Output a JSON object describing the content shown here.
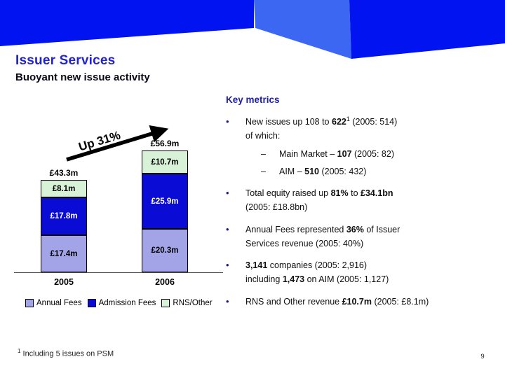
{
  "slide": {
    "title": "Issuer Services",
    "subtitle": "Buoyant new issue activity",
    "page_number": "9",
    "footnote": {
      "sup": "1",
      "text": " Including 5 issues on PSM"
    },
    "colors": {
      "header_dark": "#0013f0",
      "header_light": "#3c67f2",
      "title": "#2323cd",
      "subtitle": "#0b0b1a",
      "heading": "#1e1ea6"
    }
  },
  "key_metrics": {
    "heading": "Key metrics",
    "bullets": [
      {
        "level": 1,
        "lines": [
          [
            {
              "t": "New issues up 108 to "
            },
            {
              "t": "622",
              "b": true
            },
            {
              "t": "1",
              "sup": true
            },
            {
              "t": " (2005: 514)"
            }
          ],
          [
            {
              "t": "of which:"
            }
          ]
        ]
      },
      {
        "level": 2,
        "lines": [
          [
            {
              "t": "Main Market – "
            },
            {
              "t": "107",
              "b": true
            },
            {
              "t": " (2005: 82)"
            }
          ]
        ]
      },
      {
        "level": 2,
        "lines": [
          [
            {
              "t": "AIM – "
            },
            {
              "t": "510",
              "b": true
            },
            {
              "t": " (2005: 432)"
            }
          ]
        ]
      },
      {
        "level": 1,
        "lines": [
          [
            {
              "t": "Total equity raised up "
            },
            {
              "t": "81%",
              "b": true
            },
            {
              "t": " to "
            },
            {
              "t": "£34.1bn",
              "b": true
            }
          ],
          [
            {
              "t": "(2005: £18.8bn)"
            }
          ]
        ]
      },
      {
        "level": 1,
        "lines": [
          [
            {
              "t": "Annual Fees represented "
            },
            {
              "t": "36%",
              "b": true
            },
            {
              "t": " of Issuer"
            }
          ],
          [
            {
              "t": "Services revenue (2005: 40%)"
            }
          ]
        ]
      },
      {
        "level": 1,
        "lines": [
          [
            {
              "t": "3,141",
              "b": true
            },
            {
              "t": " companies (2005: 2,916)"
            }
          ],
          [
            {
              "t": "including "
            },
            {
              "t": "1,473",
              "b": true
            },
            {
              "t": " on AIM (2005: 1,127)"
            }
          ]
        ]
      },
      {
        "level": 1,
        "lines": [
          [
            {
              "t": "RNS and Other revenue "
            },
            {
              "t": "£10.7m",
              "b": true
            },
            {
              "t": " (2005: £8.1m)"
            }
          ]
        ]
      }
    ]
  },
  "chart_data": {
    "type": "bar",
    "stacked": true,
    "categories": [
      "2005",
      "2006"
    ],
    "series": [
      {
        "name": "Annual Fees",
        "values": [
          17.4,
          20.3
        ],
        "labels": [
          "£17.4m",
          "£20.3m"
        ],
        "color": "#a3a3e8",
        "label_color": "#000000"
      },
      {
        "name": "Admission Fees",
        "values": [
          17.8,
          25.9
        ],
        "labels": [
          "£17.8m",
          "£25.9m"
        ],
        "color": "#0b0bd6",
        "label_color": "#ffffff"
      },
      {
        "name": "RNS/Other",
        "values": [
          8.1,
          10.7
        ],
        "labels": [
          "£8.1m",
          "£10.7m"
        ],
        "color": "#d8f2d8",
        "label_color": "#000000"
      }
    ],
    "totals": [
      "£43.3m",
      "£56.9m"
    ],
    "annotation": "Up 31%",
    "unit": "£m",
    "legend_position": "bottom",
    "grid": false,
    "xlabel": "",
    "ylabel": ""
  }
}
